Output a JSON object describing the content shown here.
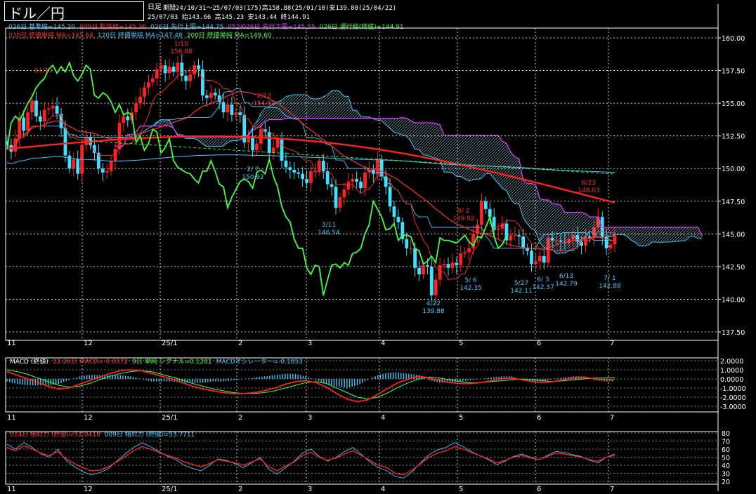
{
  "window": {
    "title": "ドル／円",
    "timeframe": "日足"
  },
  "header": {
    "range_line": "期間24/10/31〜25/07/03(175)高158.88(25/01/10)安139.88(25/04/22)",
    "ohlc_line": "25/07/03    始143.66 高145.23 安143.44 終144.91",
    "indicator_line1": [
      {
        "text": "026日 基準線=145.20",
        "color": "#3ec8ff"
      },
      {
        "text": "009日 転換線=145.36",
        "color": "#ff3030"
      },
      {
        "text": "026日 先行上限=144.75",
        "color": "#3ec8ff"
      },
      {
        "text": "052/026日 先行下限=145.55",
        "color": "#e040ff"
      },
      {
        "text": "026日 遅行線(終値)=144.91",
        "color": "#40ff40"
      }
    ],
    "indicator_line2": [
      {
        "text": "030日 終値単純 MA=145.64",
        "color": "#ff3030"
      },
      {
        "text": "120日 終値単純 MA=147.48",
        "color": "#3ec8ff"
      },
      {
        "text": "200日 終値単純 MA=149.60",
        "color": "#40ff40"
      }
    ],
    "macd_line": [
      {
        "text": "MACD (終値)",
        "color": "#ffffff"
      },
      {
        "text": "12-26日 MACD=-0.0572",
        "color": "#ff3030"
      },
      {
        "text": "9日 単純 シグナル=0.1281",
        "color": "#40ff40"
      },
      {
        "text": "MACDオシレーター=-0.1853",
        "color": "#3ec8ff"
      }
    ],
    "rsi_line": [
      {
        "text": "014日 相対力 (終値)=52.0418",
        "color": "#ff3030"
      },
      {
        "text": "009日 相対力 (終値)=53.7711",
        "color": "#3ec8ff"
      }
    ]
  },
  "colors": {
    "up": "#ff2020",
    "down": "#40e0ff",
    "grid": "#ffffff",
    "kumo_top": "#3ec8ff",
    "kumo_bottom": "#e040ff"
  },
  "chart_data": [
    {
      "type": "candlestick",
      "panel": "price",
      "ylim": [
        137.5,
        160.0
      ],
      "yticks": [
        "160.00",
        "157.50",
        "155.00",
        "152.50",
        "150.00",
        "147.50",
        "145.00",
        "142.50",
        "140.00",
        "137.50"
      ],
      "x_tick_labels": [
        "11",
        "12",
        "25/1",
        "2",
        "3",
        "4",
        "5",
        "6",
        "7"
      ],
      "grid": true,
      "close_series": [
        151.8,
        151.3,
        152.3,
        153.9,
        152.9,
        154.3,
        155.2,
        154.0,
        153.6,
        154.5,
        154.6,
        154.8,
        154.2,
        153.1,
        151.0,
        150.0,
        150.7,
        149.6,
        151.8,
        152.4,
        151.8,
        151.2,
        150.0,
        149.7,
        149.8,
        150.6,
        151.5,
        153.5,
        154.0,
        153.7,
        154.3,
        155.0,
        155.5,
        156.2,
        156.6,
        156.9,
        157.6,
        157.9,
        157.3,
        157.8,
        157.4,
        158.1,
        157.1,
        156.7,
        157.2,
        157.9,
        157.6,
        155.6,
        155.4,
        155.8,
        155.6,
        155.1,
        154.3,
        154.9,
        154.1,
        154.3,
        154.1,
        152.0,
        152.5,
        151.4,
        151.9,
        153.0,
        152.8,
        151.2,
        151.6,
        152.3,
        150.6,
        150.1,
        149.9,
        149.7,
        149.6,
        149.2,
        148.9,
        149.8,
        149.8,
        150.6,
        149.8,
        148.8,
        148.6,
        147.0,
        147.8,
        148.4,
        149.0,
        149.2,
        149.0,
        148.5,
        149.7,
        149.9,
        149.6,
        150.7,
        149.4,
        148.6,
        147.1,
        146.3,
        145.9,
        144.6,
        143.9,
        143.9,
        142.4,
        141.9,
        142.6,
        142.5,
        140.3,
        141.5,
        142.6,
        142.7,
        142.4,
        142.8,
        142.6,
        143.5,
        143.6,
        143.9,
        145.0,
        145.7,
        147.5,
        146.9,
        146.3,
        145.3,
        145.4,
        145.8,
        144.5,
        144.9,
        144.9,
        144.8,
        143.9,
        143.7,
        142.7,
        142.9,
        143.3,
        142.8,
        144.7,
        144.5,
        144.5,
        144.4,
        144.3,
        144.6,
        144.9,
        144.4,
        144.1,
        144.8,
        144.7,
        145.5,
        146.3,
        144.8,
        143.9,
        144.2,
        144.9
      ],
      "annotations": [
        {
          "text": "1/10",
          "sub": "158.88",
          "color": "#ff3030"
        },
        {
          "text": "11/15",
          "sub": "",
          "color": "#ff3030"
        },
        {
          "text": "2/12",
          "sub": "154.80",
          "color": "#ff3030"
        },
        {
          "text": "2/ 7",
          "sub": "150.92",
          "color": "#3ec8ff"
        },
        {
          "text": "3/11",
          "sub": "146.54",
          "color": "#3ec8ff"
        },
        {
          "text": "4/22",
          "sub": "139.88",
          "color": "#3ec8ff"
        },
        {
          "text": "5/ 6",
          "sub": "142.35",
          "color": "#3ec8ff"
        },
        {
          "text": "5/ 2",
          "sub": "149.92",
          "color": "#ff3030"
        },
        {
          "text": "5/27",
          "sub": "142.11",
          "color": "#3ec8ff"
        },
        {
          "text": "6/ 3",
          "sub": "142.37",
          "color": "#3ec8ff"
        },
        {
          "text": "6/13",
          "sub": "142.79",
          "color": "#3ec8ff"
        },
        {
          "text": "6/23",
          "sub": "148.03",
          "color": "#ff3030"
        },
        {
          "text": "7/ 1",
          "sub": "142.88",
          "color": "#3ec8ff"
        }
      ]
    },
    {
      "type": "macd",
      "panel": "macd",
      "ylim": [
        -3.0,
        2.0
      ],
      "yticks": [
        "2.0000",
        "1.0000",
        "0.0000",
        "-1.0000",
        "-2.0000",
        "-3.0000"
      ],
      "x_tick_labels": [
        "11",
        "12",
        "25/1",
        "2",
        "3",
        "4",
        "5",
        "6",
        "7"
      ],
      "macd": [
        0.8,
        0.4,
        0.0,
        -0.4,
        -0.8,
        -1.1,
        -1.0,
        -0.6,
        -0.2,
        0.2,
        0.6,
        0.9,
        1.0,
        0.9,
        0.6,
        0.3,
        0.0,
        -0.4,
        -0.8,
        -1.1,
        -1.3,
        -1.5,
        -1.6,
        -1.6,
        -1.5,
        -1.3,
        -1.0,
        -0.6,
        -0.3,
        -0.2,
        -0.4,
        -0.9,
        -1.6,
        -2.2,
        -2.5,
        -2.3,
        -1.7,
        -1.0,
        -0.4,
        0.0,
        0.3,
        0.1,
        -0.2,
        -0.4,
        -0.5,
        -0.5,
        -0.4,
        -0.2,
        0.0,
        0.1,
        -0.1,
        -0.3,
        -0.4,
        -0.3,
        -0.1,
        0.1,
        0.2,
        0.0,
        -0.1,
        -0.06
      ],
      "signal": [
        1.0,
        0.8,
        0.5,
        0.1,
        -0.3,
        -0.7,
        -0.9,
        -0.8,
        -0.5,
        -0.1,
        0.3,
        0.6,
        0.8,
        0.9,
        0.8,
        0.5,
        0.2,
        -0.1,
        -0.5,
        -0.8,
        -1.1,
        -1.3,
        -1.5,
        -1.6,
        -1.6,
        -1.5,
        -1.3,
        -1.0,
        -0.7,
        -0.4,
        -0.3,
        -0.5,
        -1.0,
        -1.5,
        -2.0,
        -2.2,
        -2.0,
        -1.5,
        -0.9,
        -0.4,
        0.0,
        0.2,
        0.1,
        -0.1,
        -0.3,
        -0.4,
        -0.4,
        -0.3,
        -0.2,
        -0.1,
        0.0,
        -0.1,
        -0.2,
        -0.3,
        -0.2,
        -0.1,
        0.0,
        0.1,
        0.1,
        0.13
      ]
    },
    {
      "type": "line",
      "panel": "rsi",
      "ylim": [
        20,
        80
      ],
      "yticks": [
        "80",
        "70",
        "60",
        "50",
        "40",
        "30",
        "20"
      ],
      "x_tick_labels": [
        "11",
        "12",
        "25/1",
        "2",
        "3",
        "4",
        "5",
        "6",
        "7"
      ],
      "rsi14": [
        62,
        58,
        64,
        60,
        55,
        52,
        57,
        48,
        42,
        37,
        33,
        34,
        38,
        44,
        51,
        58,
        63,
        60,
        56,
        52,
        49,
        44,
        41,
        38,
        42,
        47,
        45,
        43,
        40,
        44,
        48,
        38,
        33,
        39,
        44,
        52,
        56,
        50,
        46,
        49,
        54,
        58,
        52,
        46,
        40,
        37,
        30,
        28,
        34,
        42,
        50,
        55,
        58,
        63,
        60,
        56,
        52,
        48,
        43,
        46,
        50,
        52,
        49,
        47,
        51,
        55,
        54,
        52,
        50,
        47,
        45,
        50,
        52
      ],
      "rsi9": [
        66,
        60,
        68,
        62,
        54,
        50,
        60,
        46,
        38,
        32,
        28,
        31,
        36,
        45,
        54,
        62,
        68,
        63,
        57,
        51,
        47,
        40,
        36,
        33,
        40,
        48,
        46,
        42,
        37,
        43,
        50,
        35,
        29,
        37,
        45,
        55,
        60,
        51,
        45,
        50,
        57,
        62,
        53,
        44,
        37,
        33,
        26,
        24,
        32,
        43,
        53,
        59,
        62,
        68,
        63,
        57,
        52,
        47,
        41,
        45,
        51,
        54,
        50,
        47,
        52,
        57,
        56,
        53,
        51,
        46,
        43,
        50,
        54
      ]
    }
  ]
}
